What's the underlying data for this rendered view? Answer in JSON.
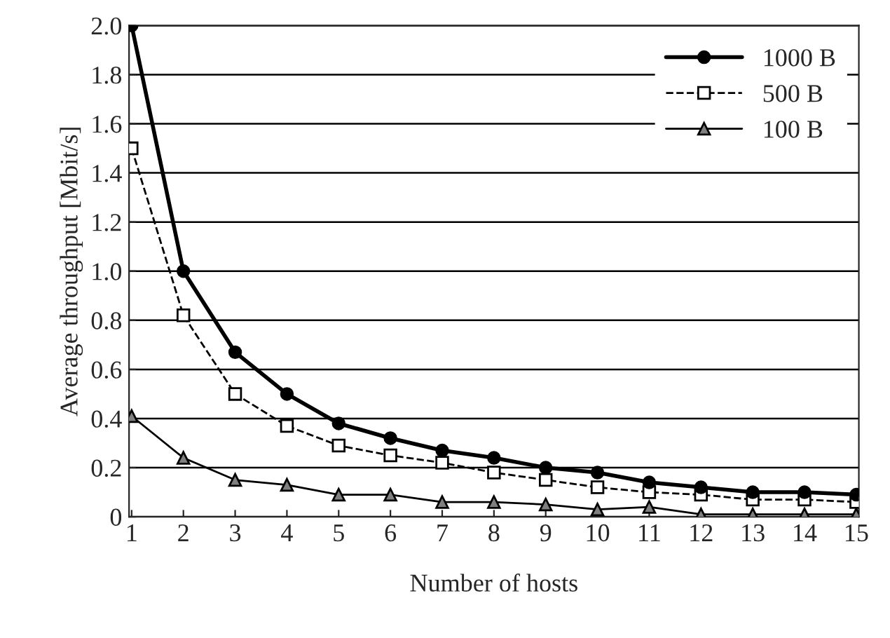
{
  "chart_data": {
    "type": "line",
    "xlabel": "Number of hosts",
    "ylabel": "Average throughput [Mbit/s]",
    "categories": [
      "1",
      "2",
      "3",
      "4",
      "5",
      "6",
      "7",
      "8",
      "9",
      "10",
      "11",
      "12",
      "13",
      "14",
      "15"
    ],
    "series": [
      {
        "name": "1000 B",
        "color": "#000000",
        "marker": "circle",
        "line_style": "solid",
        "values": [
          2.0,
          1.0,
          0.67,
          0.5,
          0.38,
          0.32,
          0.27,
          0.24,
          0.2,
          0.18,
          0.14,
          0.12,
          0.1,
          0.1,
          0.09
        ]
      },
      {
        "name": "500 B",
        "color": "#000000",
        "marker": "square",
        "line_style": "dashed",
        "values": [
          1.5,
          0.82,
          0.5,
          0.37,
          0.29,
          0.25,
          0.22,
          0.18,
          0.15,
          0.12,
          0.1,
          0.09,
          0.07,
          0.07,
          0.06
        ]
      },
      {
        "name": "100 B",
        "color": "#7f7f7f",
        "marker": "triangle",
        "line_style": "solid",
        "values": [
          0.41,
          0.24,
          0.15,
          0.13,
          0.09,
          0.09,
          0.06,
          0.06,
          0.05,
          0.03,
          0.04,
          0.01,
          0.01,
          0.01,
          0.01
        ]
      }
    ],
    "ylim": [
      0,
      2.0
    ],
    "yticks": [
      {
        "value": 0,
        "label": "0"
      },
      {
        "value": 0.2,
        "label": "0.2"
      },
      {
        "value": 0.4,
        "label": "0.4"
      },
      {
        "value": 0.6,
        "label": "0.6"
      },
      {
        "value": 0.8,
        "label": "0.8"
      },
      {
        "value": 1.0,
        "label": "1.0"
      },
      {
        "value": 1.2,
        "label": "1.2"
      },
      {
        "value": 1.4,
        "label": "1.4"
      },
      {
        "value": 1.6,
        "label": "1.6"
      },
      {
        "value": 1.8,
        "label": "1.8"
      },
      {
        "value": 2.0,
        "label": "2.0"
      }
    ],
    "grid": "y",
    "legend": "top right"
  }
}
